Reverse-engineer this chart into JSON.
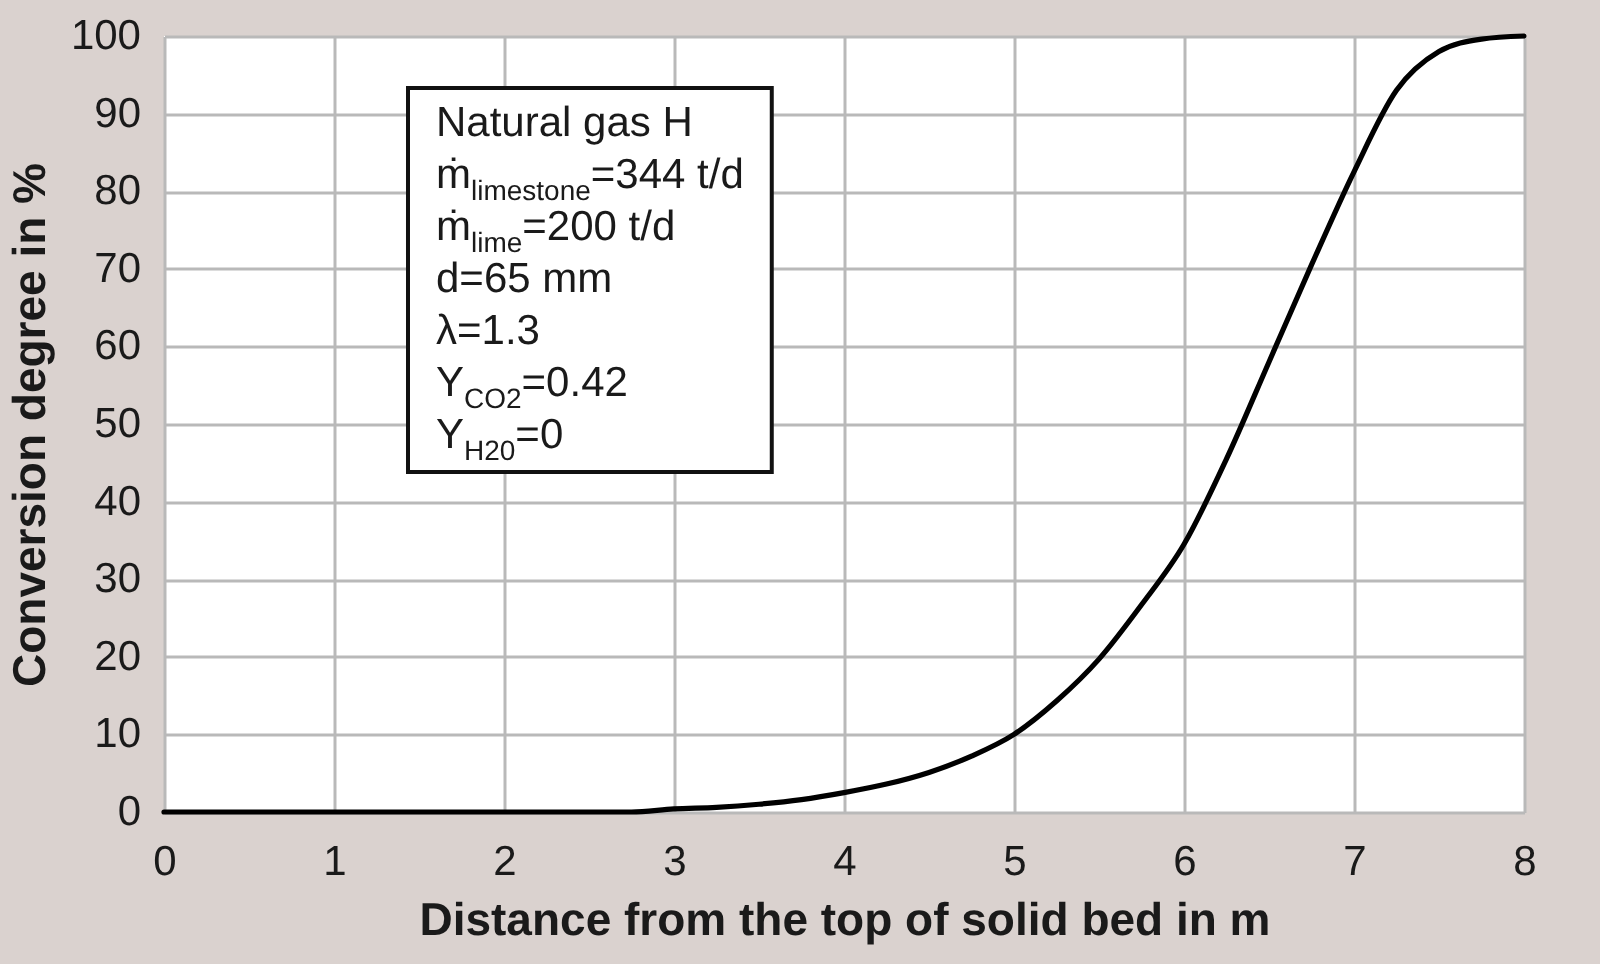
{
  "chart_data": {
    "type": "line",
    "xlabel": "Distance from the top of solid bed in m",
    "ylabel": "Conversion degree in %",
    "annotations": [
      "Natural gas H",
      "ṁ$_{limestone}$=344 t/d",
      "ṁ$_{lime}$=200 t/d",
      "d=65 mm",
      "λ=1.3",
      "Y$_{CO2}$=0.42",
      "Y$_{H20}$=0"
    ],
    "x": [
      0,
      1,
      2,
      2.75,
      3,
      3.25,
      3.5,
      3.75,
      4,
      4.25,
      4.5,
      4.75,
      5,
      5.25,
      5.5,
      5.75,
      6,
      6.25,
      6.5,
      6.75,
      7,
      7.25,
      7.5,
      7.75,
      8
    ],
    "series": [
      {
        "color": "#000000",
        "values": [
          0,
          0,
          0,
          0,
          0.4,
          0.6,
          1,
          1.6,
          2.5,
          3.6,
          5.1,
          7.2,
          10,
          14.3,
          19.7,
          26.7,
          34.5,
          45.5,
          58,
          70.5,
          82.5,
          93,
          98,
          99.6,
          100
        ]
      }
    ],
    "xlim": [
      0,
      8
    ],
    "xticks": [
      0,
      1,
      2,
      3,
      4,
      5,
      6,
      7,
      8
    ],
    "ylim": [
      0,
      100
    ],
    "yticks": [
      0,
      10,
      20,
      30,
      40,
      50,
      60,
      70,
      80,
      90,
      100
    ],
    "grid": true,
    "marker": "none",
    "line_style": "solid"
  }
}
